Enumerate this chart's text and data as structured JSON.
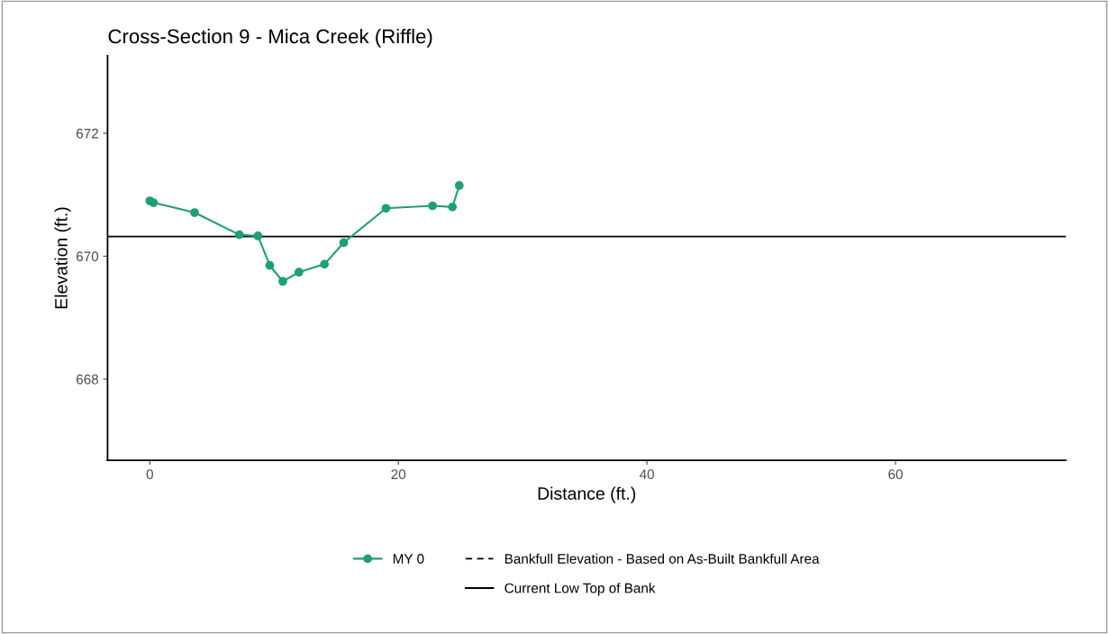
{
  "chart_data": {
    "type": "line",
    "title": "Cross-Section 9 - Mica Creek (Riffle)",
    "xlabel": "Distance (ft.)",
    "ylabel": "Elevation (ft.)",
    "series": [
      {
        "name": "MY 0",
        "color": "#1f9e77",
        "marker": "circle",
        "line_style": "solid",
        "x": [
          0,
          0.3,
          3.6,
          7.2,
          8.7,
          9.65,
          10.7,
          12.0,
          14.05,
          15.6,
          19.0,
          22.75,
          24.35,
          24.9
        ],
        "values": [
          670.9,
          670.87,
          670.71,
          670.35,
          670.33,
          669.85,
          669.59,
          669.74,
          669.87,
          670.22,
          670.78,
          670.82,
          670.8,
          671.15
        ]
      }
    ],
    "ref_lines": [
      {
        "value": null,
        "label": "Bankfull Elevation - Based on As-Built Bankfull Area",
        "color": "#000000",
        "line_style": "dashed"
      },
      {
        "axis": "y",
        "value": 670.32,
        "label": "Current Low Top of Bank",
        "color": "#000000",
        "line_style": "solid"
      }
    ],
    "xlim": [
      -3.4,
      73.7
    ],
    "ylim": [
      666.68,
      673.26
    ],
    "xticks": [
      0,
      20,
      40,
      60
    ],
    "yticks": [
      668,
      670,
      672
    ],
    "grid": false,
    "legend": "bottom"
  }
}
